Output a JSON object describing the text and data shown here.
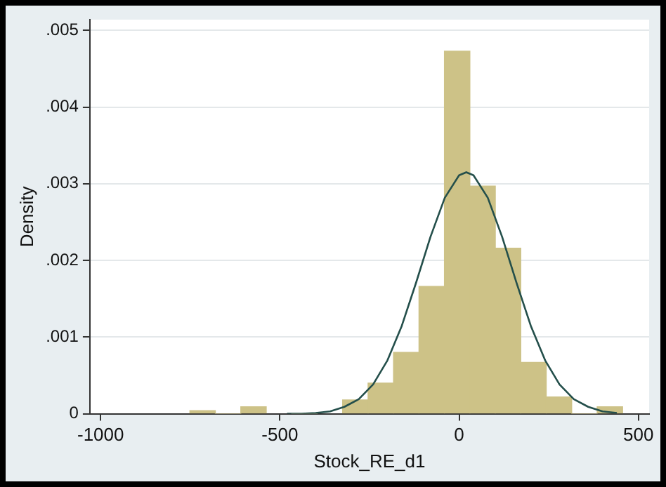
{
  "chart_data": {
    "type": "histogram",
    "xlabel": "Stock_RE_d1",
    "ylabel": "Density",
    "bins": [
      -751,
      -680,
      -609,
      -538,
      -325,
      -254,
      -183,
      -112,
      -41,
      30,
      101,
      172,
      243,
      314,
      385,
      456
    ],
    "values": [
      4e-05,
      0,
      9e-05,
      0,
      0.00018,
      0.0004,
      0.0008,
      0.00166,
      0.00473,
      0.00297,
      0.00216,
      0.00067,
      0.00022,
      0,
      9e-05
    ],
    "color": "#cdc287",
    "series": [
      {
        "type": "line",
        "color": "#244f4b",
        "x": [
          -480,
          -440,
          -400,
          -360,
          -320,
          -280,
          -240,
          -200,
          -160,
          -120,
          -80,
          -40,
          0,
          20,
          40,
          80,
          120,
          160,
          200,
          240,
          280,
          320,
          360,
          400,
          440
        ],
        "values": [
          0,
          0,
          1e-05,
          3e-05,
          9e-05,
          0.00019,
          0.000382,
          0.000696,
          0.001146,
          0.00171,
          0.002306,
          0.002816,
          0.003111,
          0.00315,
          0.003111,
          0.002816,
          0.002306,
          0.00171,
          0.001146,
          0.000696,
          0.000382,
          0.00019,
          9e-05,
          3e-05,
          1e-05
        ]
      }
    ],
    "xlim": [
      -1030,
      530
    ],
    "xticks": [
      -1000,
      -500,
      0,
      500
    ],
    "ylim": [
      0,
      0.00514
    ],
    "yticks": [
      0,
      {
        "value": 0.001,
        "label": ".001"
      },
      {
        "value": 0.002,
        "label": ".002"
      },
      {
        "value": 0.003,
        "label": ".003"
      },
      {
        "value": 0.004,
        "label": ".004"
      },
      {
        "value": 0.005,
        "label": ".005"
      }
    ],
    "grid": "y",
    "legend": false,
    "marker": "none"
  }
}
